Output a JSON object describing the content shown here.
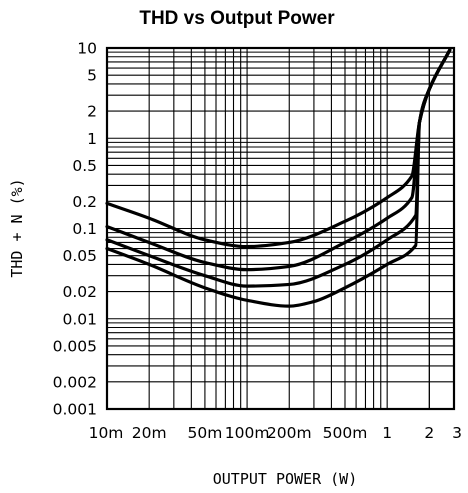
{
  "chart_data": {
    "type": "line",
    "title": "THD vs Output Power",
    "xlabel": "OUTPUT POWER (W)",
    "ylabel": "THD + N (%)",
    "xscale": "log",
    "yscale": "log",
    "xlim": [
      0.01,
      3
    ],
    "ylim": [
      0.001,
      10
    ],
    "grid": true,
    "x_ticks": [
      {
        "value": 0.01,
        "label": "10m"
      },
      {
        "value": 0.02,
        "label": "20m"
      },
      {
        "value": 0.05,
        "label": "50m"
      },
      {
        "value": 0.1,
        "label": "100m"
      },
      {
        "value": 0.2,
        "label": "200m"
      },
      {
        "value": 0.5,
        "label": "500m"
      },
      {
        "value": 1,
        "label": "1"
      },
      {
        "value": 2,
        "label": "2"
      },
      {
        "value": 3,
        "label": "3"
      }
    ],
    "y_ticks": [
      {
        "value": 10,
        "label": "10"
      },
      {
        "value": 5,
        "label": "5"
      },
      {
        "value": 2,
        "label": "2"
      },
      {
        "value": 1,
        "label": "1"
      },
      {
        "value": 0.5,
        "label": "0.5"
      },
      {
        "value": 0.2,
        "label": "0.2"
      },
      {
        "value": 0.1,
        "label": "0.1"
      },
      {
        "value": 0.05,
        "label": "0.05"
      },
      {
        "value": 0.02,
        "label": "0.02"
      },
      {
        "value": 0.01,
        "label": "0.01"
      },
      {
        "value": 0.005,
        "label": "0.005"
      },
      {
        "value": 0.002,
        "label": "0.002"
      },
      {
        "value": 0.001,
        "label": "0.001"
      }
    ],
    "series": [
      {
        "points": [
          [
            0.01,
            0.19
          ],
          [
            0.02,
            0.13
          ],
          [
            0.05,
            0.075
          ],
          [
            0.1,
            0.063
          ],
          [
            0.2,
            0.07
          ],
          [
            0.5,
            0.12
          ],
          [
            1,
            0.22
          ],
          [
            1.5,
            0.38
          ],
          [
            1.7,
            1.5
          ],
          [
            2,
            3.5
          ],
          [
            2.8,
            9.5
          ]
        ]
      },
      {
        "points": [
          [
            0.01,
            0.105
          ],
          [
            0.02,
            0.07
          ],
          [
            0.05,
            0.042
          ],
          [
            0.1,
            0.035
          ],
          [
            0.2,
            0.038
          ],
          [
            0.5,
            0.07
          ],
          [
            1,
            0.13
          ],
          [
            1.5,
            0.22
          ],
          [
            1.7,
            1.5
          ],
          [
            2,
            3.5
          ],
          [
            2.8,
            9.5
          ]
        ]
      },
      {
        "points": [
          [
            0.01,
            0.075
          ],
          [
            0.02,
            0.05
          ],
          [
            0.05,
            0.03
          ],
          [
            0.1,
            0.023
          ],
          [
            0.2,
            0.024
          ],
          [
            0.5,
            0.04
          ],
          [
            1,
            0.075
          ],
          [
            1.6,
            0.14
          ],
          [
            1.7,
            1.5
          ],
          [
            2,
            3.5
          ],
          [
            2.8,
            9.5
          ]
        ]
      },
      {
        "points": [
          [
            0.01,
            0.06
          ],
          [
            0.02,
            0.04
          ],
          [
            0.05,
            0.022
          ],
          [
            0.1,
            0.016
          ],
          [
            0.2,
            0.0138
          ],
          [
            0.3,
            0.0155
          ],
          [
            0.5,
            0.022
          ],
          [
            1,
            0.04
          ],
          [
            1.6,
            0.065
          ],
          [
            1.7,
            1.5
          ],
          [
            2,
            3.5
          ],
          [
            2.8,
            9.5
          ]
        ]
      }
    ]
  }
}
